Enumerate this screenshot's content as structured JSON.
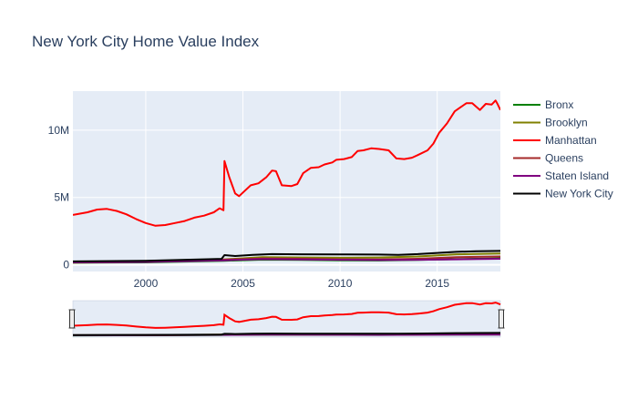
{
  "chart_data": {
    "type": "line",
    "title": "New York City Home Value Index",
    "xlabel": "",
    "ylabel": "",
    "x_ticks": [
      {
        "value": 2000,
        "label": "2000"
      },
      {
        "value": 2005,
        "label": "2005"
      },
      {
        "value": 2010,
        "label": "2010"
      },
      {
        "value": 2015,
        "label": "2015"
      }
    ],
    "y_ticks": [
      {
        "value": 0,
        "label": "0"
      },
      {
        "value": 5000000,
        "label": "5M"
      },
      {
        "value": 10000000,
        "label": "10M"
      }
    ],
    "xlim": [
      1996.25,
      2018.25
    ],
    "ylim": [
      -500000,
      12900000
    ],
    "grid": true,
    "legend_position": "right",
    "range_slider": true,
    "series": [
      {
        "name": "Bronx",
        "color": "#008000",
        "points": [
          [
            1996.25,
            150000
          ],
          [
            2000,
            180000
          ],
          [
            2004,
            300000
          ],
          [
            2006,
            380000
          ],
          [
            2008,
            360000
          ],
          [
            2010,
            330000
          ],
          [
            2012,
            320000
          ],
          [
            2014,
            360000
          ],
          [
            2016,
            420000
          ],
          [
            2018.25,
            480000
          ]
        ]
      },
      {
        "name": "Brooklyn",
        "color": "#808000",
        "points": [
          [
            1996.25,
            160000
          ],
          [
            2000,
            220000
          ],
          [
            2004,
            400000
          ],
          [
            2006,
            560000
          ],
          [
            2008,
            540000
          ],
          [
            2010,
            520000
          ],
          [
            2012,
            540000
          ],
          [
            2014,
            620000
          ],
          [
            2016,
            780000
          ],
          [
            2018.25,
            830000
          ]
        ]
      },
      {
        "name": "Manhattan",
        "color": "#ff0000",
        "points": [
          [
            1996.25,
            3700000
          ],
          [
            1997,
            3900000
          ],
          [
            1997.5,
            4100000
          ],
          [
            1998,
            4150000
          ],
          [
            1998.5,
            4000000
          ],
          [
            1999,
            3750000
          ],
          [
            1999.5,
            3400000
          ],
          [
            2000,
            3100000
          ],
          [
            2000.5,
            2900000
          ],
          [
            2001,
            2950000
          ],
          [
            2001.5,
            3100000
          ],
          [
            2002,
            3250000
          ],
          [
            2002.5,
            3500000
          ],
          [
            2003,
            3650000
          ],
          [
            2003.5,
            3900000
          ],
          [
            2003.8,
            4200000
          ],
          [
            2004.0,
            4050000
          ],
          [
            2004.05,
            7700000
          ],
          [
            2004.3,
            6500000
          ],
          [
            2004.6,
            5300000
          ],
          [
            2004.8,
            5100000
          ],
          [
            2005.1,
            5500000
          ],
          [
            2005.4,
            5900000
          ],
          [
            2005.8,
            6050000
          ],
          [
            2006.2,
            6500000
          ],
          [
            2006.5,
            7000000
          ],
          [
            2006.7,
            6950000
          ],
          [
            2007.0,
            5900000
          ],
          [
            2007.5,
            5850000
          ],
          [
            2007.8,
            6000000
          ],
          [
            2008.1,
            6800000
          ],
          [
            2008.5,
            7200000
          ],
          [
            2008.9,
            7250000
          ],
          [
            2009.2,
            7450000
          ],
          [
            2009.6,
            7600000
          ],
          [
            2009.8,
            7800000
          ],
          [
            2010.2,
            7850000
          ],
          [
            2010.6,
            8000000
          ],
          [
            2010.9,
            8450000
          ],
          [
            2011.2,
            8500000
          ],
          [
            2011.6,
            8650000
          ],
          [
            2012.0,
            8600000
          ],
          [
            2012.5,
            8500000
          ],
          [
            2012.9,
            7900000
          ],
          [
            2013.3,
            7850000
          ],
          [
            2013.7,
            7950000
          ],
          [
            2014.0,
            8150000
          ],
          [
            2014.5,
            8500000
          ],
          [
            2014.8,
            9000000
          ],
          [
            2015.1,
            9800000
          ],
          [
            2015.5,
            10500000
          ],
          [
            2015.9,
            11400000
          ],
          [
            2016.2,
            11700000
          ],
          [
            2016.5,
            12000000
          ],
          [
            2016.8,
            12000000
          ],
          [
            2017.2,
            11500000
          ],
          [
            2017.5,
            11950000
          ],
          [
            2017.8,
            11900000
          ],
          [
            2018.0,
            12200000
          ],
          [
            2018.1,
            11950000
          ],
          [
            2018.25,
            11500000
          ]
        ]
      },
      {
        "name": "Queens",
        "color": "#a52a2a",
        "points": [
          [
            1996.25,
            200000
          ],
          [
            2000,
            230000
          ],
          [
            2004,
            380000
          ],
          [
            2006,
            470000
          ],
          [
            2008,
            450000
          ],
          [
            2010,
            410000
          ],
          [
            2012,
            390000
          ],
          [
            2014,
            450000
          ],
          [
            2016,
            560000
          ],
          [
            2018.25,
            620000
          ]
        ]
      },
      {
        "name": "Staten Island",
        "color": "#800080",
        "points": [
          [
            1996.25,
            180000
          ],
          [
            2000,
            210000
          ],
          [
            2004,
            330000
          ],
          [
            2006,
            420000
          ],
          [
            2008,
            400000
          ],
          [
            2010,
            370000
          ],
          [
            2012,
            350000
          ],
          [
            2014,
            370000
          ],
          [
            2016,
            410000
          ],
          [
            2018.25,
            450000
          ]
        ]
      },
      {
        "name": "New York City",
        "color": "#000000",
        "points": [
          [
            1996.25,
            250000
          ],
          [
            2000,
            300000
          ],
          [
            2003.9,
            440000
          ],
          [
            2004.05,
            720000
          ],
          [
            2004.6,
            650000
          ],
          [
            2005.5,
            730000
          ],
          [
            2006.5,
            790000
          ],
          [
            2008,
            780000
          ],
          [
            2010,
            770000
          ],
          [
            2012,
            760000
          ],
          [
            2013,
            740000
          ],
          [
            2014,
            790000
          ],
          [
            2015,
            880000
          ],
          [
            2016,
            960000
          ],
          [
            2017,
            1000000
          ],
          [
            2018.25,
            1030000
          ]
        ]
      }
    ]
  }
}
